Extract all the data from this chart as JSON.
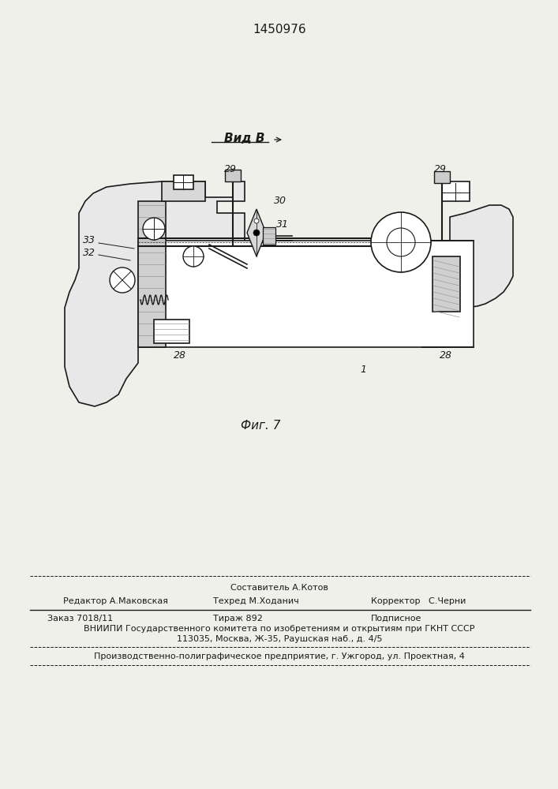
{
  "patent_number": "1450976",
  "bg_color": "#f0f0eb",
  "view_label": "Вид В",
  "fig_label": "Фиг. 7",
  "footer": {
    "sostavitel": "Составитель А.Котов",
    "redaktor": "Редактор А.Маковская",
    "tehred": "Техред М.Ходанич",
    "korrektor": "Корректор   С.Черни",
    "order": "Заказ 7018/11",
    "tirazh": "Тираж 892",
    "podpisnoe": "Подписное",
    "vniiipi": "ВНИИПИ Государственного комитета по изобретениям и открытиям при ГКНТ СССР",
    "address": "113035, Москва, Ж-35, Раушская наб., д. 4/5",
    "production": "Производственно-полиграфическое предприятие, г. Ужгород, ул. Проектная, 4"
  }
}
